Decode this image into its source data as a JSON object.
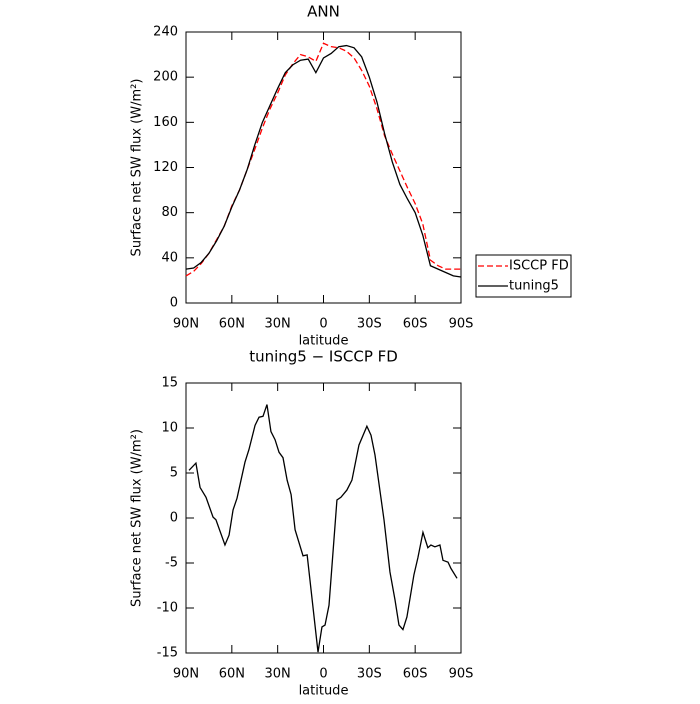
{
  "chart_data": [
    {
      "type": "line",
      "title": "ANN",
      "x_label": "latitude",
      "y_label": "Surface net SW flux (W/m²)",
      "x": [
        90,
        85,
        80,
        75,
        70,
        65,
        60,
        55,
        50,
        45,
        40,
        35,
        30,
        25,
        20,
        15,
        10,
        5,
        0,
        -5,
        -10,
        -15,
        -20,
        -25,
        -30,
        -35,
        -40,
        -45,
        -50,
        -55,
        -60,
        -65,
        -70,
        -75,
        -80,
        -85,
        -90
      ],
      "series": [
        {
          "name": "ISCCP FD",
          "color": "#ff0000",
          "dashed": true,
          "values": [
            24,
            28,
            35,
            44,
            56,
            68,
            86,
            100,
            118,
            136,
            155,
            172,
            186,
            202,
            212,
            220,
            218,
            214,
            230,
            227,
            226,
            223,
            217,
            206,
            192,
            172,
            148,
            132,
            117,
            102,
            88,
            70,
            38,
            33,
            30,
            30,
            30
          ]
        },
        {
          "name": "tuning5",
          "color": "#000000",
          "dashed": false,
          "values": [
            30,
            31,
            36,
            44,
            55,
            68,
            85,
            100,
            118,
            140,
            160,
            175,
            190,
            204,
            211,
            215,
            216,
            204,
            217,
            221,
            227,
            228,
            226,
            218,
            200,
            178,
            150,
            125,
            105,
            92,
            80,
            60,
            33,
            30,
            27,
            24,
            23
          ]
        }
      ],
      "xlim": [
        90,
        -90
      ],
      "xticks": [
        {
          "value": 90,
          "label": "90N"
        },
        {
          "value": 60,
          "label": "60N"
        },
        {
          "value": 30,
          "label": "30N"
        },
        0,
        {
          "value": -30,
          "label": "30S"
        },
        {
          "value": -60,
          "label": "60S"
        },
        {
          "value": -90,
          "label": "90S"
        }
      ],
      "ylim": [
        0,
        240
      ],
      "yticks": [
        0,
        40,
        80,
        120,
        160,
        200,
        240
      ],
      "legend": "outside-right",
      "grid": false
    },
    {
      "type": "line",
      "title": "tuning5 − ISCCP FD",
      "x_label": "latitude",
      "y_label": "Surface net SW flux (W/m²)",
      "x": [
        88.0,
        83.5,
        80.8,
        76.9,
        72.3,
        70.4,
        64.5,
        61.8,
        59.2,
        56.6,
        51.4,
        48.8,
        44.8,
        42.2,
        39.6,
        37.0,
        34.4,
        31.7,
        29.1,
        26.5,
        23.8,
        21.2,
        18.6,
        13.4,
        10.7,
        3.6,
        1.0,
        -1.0,
        -3.6,
        -8.8,
        -11.4,
        -15.3,
        -18.6,
        -23.2,
        -28.4,
        -31.1,
        -33.7,
        -39.6,
        -43.5,
        -46.8,
        -49.4,
        -52.0,
        -54.6,
        -59.2,
        -61.8,
        -65.1,
        -68.3,
        -70.3,
        -72.9,
        -76.2,
        -78.2,
        -81.5,
        -83.4,
        -87.4
      ],
      "series": [
        {
          "color": "#000000",
          "dashed": false,
          "values": [
            5.3,
            6.1,
            3.4,
            2.3,
            0.1,
            -0.2,
            -3,
            -1.9,
            0.9,
            2.2,
            6.2,
            7.6,
            10.3,
            11.2,
            11.3,
            12.6,
            9.6,
            8.7,
            7.3,
            6.7,
            4.2,
            2.6,
            -1.3,
            -4.2,
            -4.1,
            -14.9,
            -12.1,
            -11.9,
            -9.7,
            2,
            2.3,
            3.1,
            4.2,
            8.1,
            10.2,
            9.2,
            7,
            -0.2,
            -6,
            -9.1,
            -11.9,
            -12.4,
            -11,
            -6.3,
            -4.4,
            -1.6,
            -3.3,
            -3,
            -3.2,
            -3,
            -4.7,
            -4.9,
            -5.6,
            -6.7
          ]
        }
      ],
      "xlim": [
        90,
        -90
      ],
      "xticks": [
        {
          "value": 90,
          "label": "90N"
        },
        {
          "value": 60,
          "label": "60N"
        },
        {
          "value": 30,
          "label": "30N"
        },
        0,
        {
          "value": -30,
          "label": "30S"
        },
        {
          "value": -60,
          "label": "60S"
        },
        {
          "value": -90,
          "label": "90S"
        }
      ],
      "ylim": [
        -15,
        15
      ],
      "yticks": [
        -15,
        -10,
        -5,
        0,
        5,
        10,
        15
      ],
      "grid": false
    }
  ]
}
